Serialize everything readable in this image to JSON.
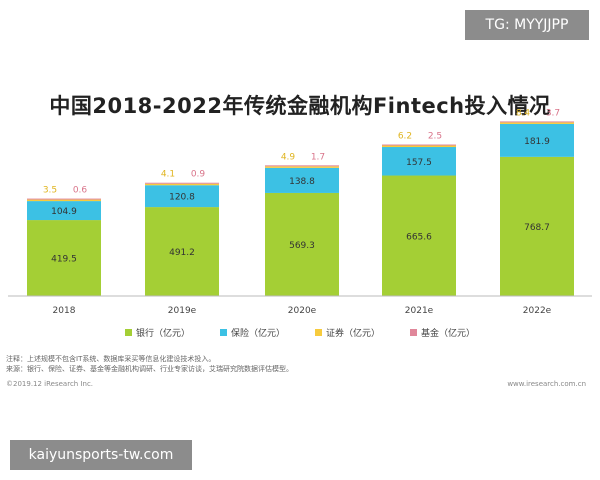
{
  "watermark_top": "TG: MYYJJPP",
  "watermark_bottom": "kaiyunsports-tw.com",
  "notes": {
    "line1": "注释：上述规模不包含IT系统、数据库采买等信息化建设技术投入。",
    "line2": "来源：银行、保险、证券、基金等金融机构调研、行业专家访谈，艾瑞研究院数据评估模型。"
  },
  "copyright": "©2019.12 iResearch Inc.",
  "site": "www.iresearch.com.cn",
  "chart_data": {
    "type": "bar",
    "stacked": true,
    "title": "中国2018-2022年传统金融机构Fintech投入情况",
    "categories": [
      "2018",
      "2019e",
      "2020e",
      "2021e",
      "2022e"
    ],
    "series": [
      {
        "name": "银行（亿元）",
        "color": "#a4cf35",
        "values": [
          419.5,
          491.2,
          569.3,
          665.6,
          768.7
        ]
      },
      {
        "name": "保险（亿元）",
        "color": "#3cc1e4",
        "values": [
          104.9,
          120.8,
          138.8,
          157.5,
          181.9
        ]
      },
      {
        "name": "证券（亿元）",
        "color": "#f7cb3d",
        "values": [
          3.5,
          4.1,
          4.9,
          6.2,
          8.4
        ]
      },
      {
        "name": "基金（亿元）",
        "color": "#e0879a",
        "values": [
          0.6,
          0.9,
          1.7,
          2.5,
          3.7
        ]
      }
    ],
    "label_colors": [
      "#ffffff",
      "#333333",
      "#e0b520",
      "#d9748a"
    ],
    "xlabel": "",
    "ylabel": "",
    "grid": false,
    "legend_position": "bottom"
  }
}
